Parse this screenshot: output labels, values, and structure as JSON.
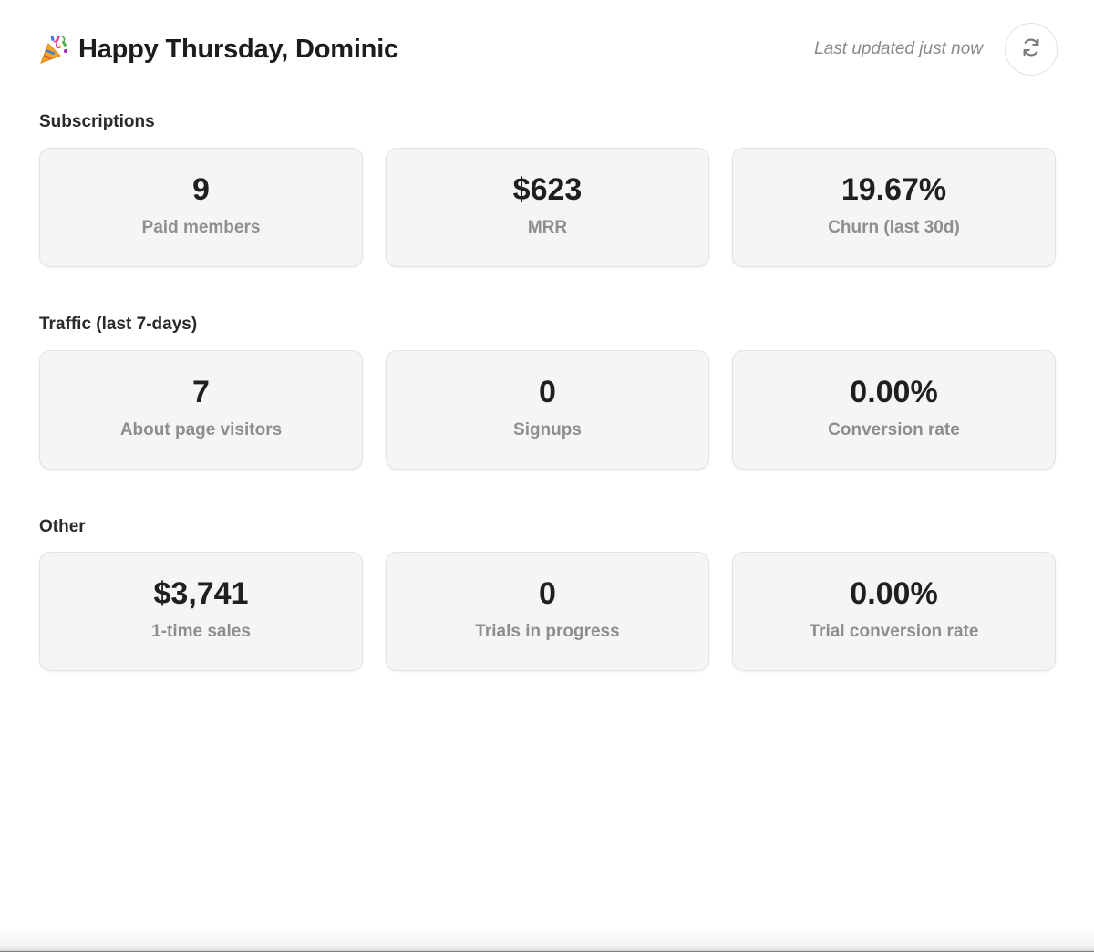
{
  "header": {
    "greeting_icon": "party-popper-icon",
    "greeting": "Happy Thursday, Dominic",
    "last_updated": "Last updated just now",
    "refresh_icon": "refresh-icon"
  },
  "sections": [
    {
      "title": "Subscriptions",
      "cards": [
        {
          "value": "9",
          "label": "Paid members"
        },
        {
          "value": "$623",
          "label": "MRR"
        },
        {
          "value": "19.67%",
          "label": "Churn (last 30d)"
        }
      ]
    },
    {
      "title": "Traffic (last 7-days)",
      "cards": [
        {
          "value": "7",
          "label": "About page visitors"
        },
        {
          "value": "0",
          "label": "Signups"
        },
        {
          "value": "0.00%",
          "label": "Conversion rate"
        }
      ]
    },
    {
      "title": "Other",
      "cards": [
        {
          "value": "$3,741",
          "label": "1-time sales"
        },
        {
          "value": "0",
          "label": "Trials in progress"
        },
        {
          "value": "0.00%",
          "label": "Trial conversion rate"
        }
      ]
    }
  ],
  "colors": {
    "card_background": "#f6f5f4",
    "card_border": "#e4e3e1",
    "value_text": "#1f1f1f",
    "label_text": "#8e8e8e",
    "muted_text": "#8a8a8a"
  }
}
